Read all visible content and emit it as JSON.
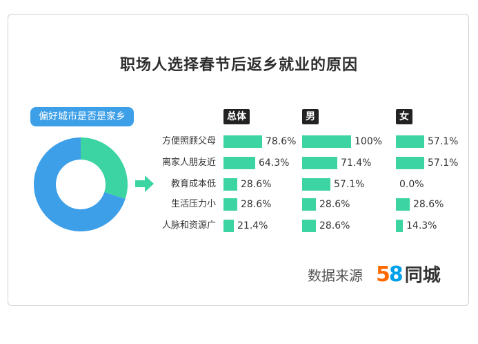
{
  "title": "职场人选择春节后返乡就业的原因",
  "colors": {
    "bar": "#3bd4a2",
    "donut_major": "#3d9fe8",
    "donut_minor": "#3bd4a2",
    "arrow": "#3bd4a2",
    "pill": "#3d9fe8"
  },
  "donut": {
    "label": "偏好城市是否是家乡",
    "segments": [
      {
        "value": 70
      },
      {
        "value": 30
      }
    ]
  },
  "source": {
    "label": "数据来源",
    "logo_digit_5": "5",
    "logo_digit_8": "8",
    "logo_name": "同城"
  },
  "chart_data": {
    "type": "bar",
    "categories": [
      "方便照顾父母",
      "离家人朋友近",
      "教育成本低",
      "生活压力小",
      "人脉和资源广"
    ],
    "series": [
      {
        "name": "总体",
        "values": [
          78.6,
          64.3,
          28.6,
          28.6,
          21.4
        ],
        "labels": [
          "78.6%",
          "64.3%",
          "28.6%",
          "28.6%",
          "21.4%"
        ]
      },
      {
        "name": "男",
        "values": [
          100,
          71.4,
          57.1,
          28.6,
          28.6
        ],
        "labels": [
          "100%",
          "71.4%",
          "57.1%",
          "28.6%",
          "28.6%"
        ]
      },
      {
        "name": "女",
        "values": [
          57.1,
          57.1,
          0.0,
          28.6,
          14.3
        ],
        "labels": [
          "57.1%",
          "57.1%",
          "0.0%",
          "28.6%",
          "14.3%"
        ]
      }
    ],
    "xlim": [
      0,
      100
    ]
  }
}
